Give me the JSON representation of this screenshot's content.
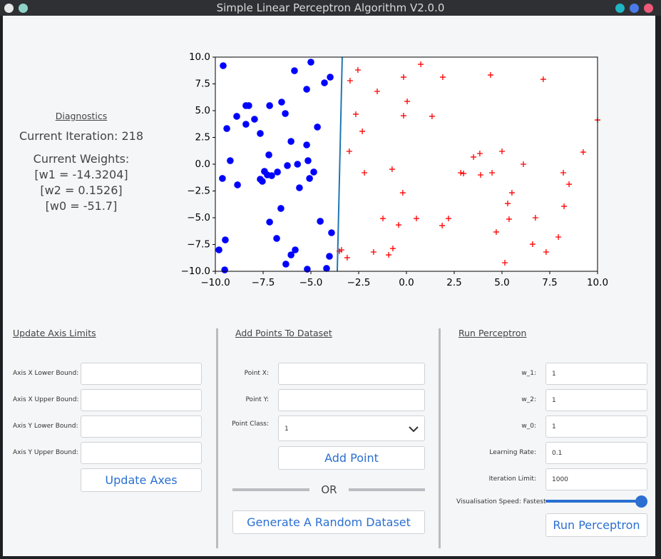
{
  "window": {
    "title": "Simple Linear Perceptron Algorithm V2.0.0"
  },
  "diagnostics": {
    "heading": "Diagnostics",
    "iteration": "Current Iteration: 218",
    "weights_heading": "Current Weights:",
    "weights": [
      "[w1 = -14.3204]",
      "[w2 = 0.1526]",
      "[w0 = -51.7]"
    ]
  },
  "chart_data": {
    "type": "scatter",
    "xlim": [
      -10,
      10
    ],
    "ylim": [
      -10,
      10
    ],
    "xticks": [
      {
        "value": -10,
        "label": "−10.0"
      },
      {
        "value": -7.5,
        "label": "−7.5"
      },
      {
        "value": -5,
        "label": "−5.0"
      },
      {
        "value": -2.5,
        "label": "−2.5"
      },
      {
        "value": 0,
        "label": "0.0"
      },
      {
        "value": 2.5,
        "label": "2.5"
      },
      {
        "value": 5,
        "label": "5.0"
      },
      {
        "value": 7.5,
        "label": "7.5"
      },
      {
        "value": 10,
        "label": "10.0"
      }
    ],
    "yticks": [
      {
        "value": 10,
        "label": "10.0"
      },
      {
        "value": 7.5,
        "label": "7.5"
      },
      {
        "value": 5,
        "label": "5.0"
      },
      {
        "value": 2.5,
        "label": "2.5"
      },
      {
        "value": 0,
        "label": "0.0"
      },
      {
        "value": -2.5,
        "label": "−2.5"
      },
      {
        "value": -5,
        "label": "−5.0"
      },
      {
        "value": -7.5,
        "label": "−7.5"
      },
      {
        "value": -10,
        "label": "−10.0"
      }
    ],
    "series": [
      {
        "type": "scatter",
        "marker": "circle",
        "color": "#0000ff",
        "x": [
          -9.59,
          -5.86,
          -5.0,
          -3.99,
          -4.29,
          -5.22,
          -8.4,
          -8.25,
          -7.16,
          -6.53,
          -6.34,
          -8.88,
          -7.95,
          -8.4,
          -9.4,
          -4.66,
          -7.65,
          -6.04,
          -5.22,
          -7.2,
          -9.22,
          -5.15,
          -6.23,
          -5.7,
          -7.43,
          -6.75,
          -7.28,
          -7.05,
          -7.65,
          -7.54,
          -4.85,
          -5.07,
          -9.63,
          -8.84,
          -5.6,
          -6.57,
          -7.16,
          -4.51,
          -3.92,
          -6.79,
          -9.48,
          -9.81,
          -5.82,
          -6.04,
          -4.03,
          -6.31,
          -9.51,
          -5.19,
          -4.18
        ],
        "y": [
          9.2,
          8.73,
          9.53,
          8.13,
          7.6,
          7.0,
          5.47,
          5.47,
          5.47,
          5.8,
          4.73,
          4.47,
          4.2,
          3.73,
          3.33,
          3.47,
          2.87,
          2.13,
          1.8,
          0.87,
          0.33,
          0.33,
          -0.13,
          0,
          -0.67,
          -0.73,
          -1.0,
          -1.07,
          -1.4,
          -1.6,
          -0.73,
          -1.33,
          -1.33,
          -1.93,
          -2.2,
          -4.13,
          -5.4,
          -5.33,
          -6.4,
          -6.93,
          -7.07,
          -8.0,
          -8.0,
          -8.47,
          -8.6,
          -9.33,
          -9.87,
          -9.8,
          -9.73
        ]
      },
      {
        "type": "scatter",
        "marker": "plus",
        "color": "#ff0000",
        "x": [
          0.75,
          -2.54,
          -2.95,
          -0.15,
          1.9,
          4.4,
          7.16,
          -1.53,
          0.04,
          -2.65,
          -0.15,
          1.34,
          -2.31,
          10.0,
          -2.99,
          5.0,
          9.25,
          3.84,
          3.51,
          6.12,
          -0.75,
          -2.2,
          2.84,
          2.99,
          3.88,
          4.48,
          8.21,
          8.51,
          -0.19,
          5.52,
          5.3,
          8.25,
          -1.23,
          0.52,
          2.2,
          5.37,
          6.75,
          -0.41,
          1.87,
          4.7,
          7.95,
          6.6,
          7.31,
          5.15,
          -0.71,
          -0.93,
          -1.72,
          -3.4,
          -3.51,
          -3.1
        ],
        "y": [
          9.33,
          8.8,
          7.8,
          8.13,
          8.13,
          8.33,
          7.93,
          6.8,
          5.87,
          4.67,
          4.53,
          4.47,
          3.07,
          4.13,
          1.2,
          1.2,
          1.13,
          1.0,
          0.67,
          0,
          -0.47,
          -0.8,
          -0.8,
          -0.87,
          -1.0,
          -0.8,
          -0.8,
          -1.87,
          -2.67,
          -2.67,
          -3.67,
          -3.93,
          -5.07,
          -5.07,
          -5.07,
          -5.13,
          -5.0,
          -5.67,
          -5.73,
          -6.33,
          -6.8,
          -7.47,
          -8.2,
          -9.2,
          -7.87,
          -8.47,
          -8.2,
          -8.0,
          -8.13,
          -8.73
        ]
      },
      {
        "type": "line",
        "color": "#1f77b4",
        "x": [
          -3.36,
          -3.62
        ],
        "y": [
          10,
          -10
        ]
      }
    ]
  },
  "axis_panel": {
    "heading": "Update Axis Limits",
    "fields": [
      "Axis X Lower Bound:",
      "Axis X Upper Bound:",
      "Axis Y Lower Bound:",
      "Axis Y Upper Bound:"
    ],
    "button": "Update Axes"
  },
  "points_panel": {
    "heading": "Add Points To Dataset",
    "fields": [
      "Point X:",
      "Point Y:"
    ],
    "class_label": "Point Class:",
    "class_value": "1",
    "button": "Add Point",
    "separator": "OR",
    "random_button": "Generate A Random Dataset"
  },
  "perceptron_panel": {
    "heading": "Run Perceptron",
    "fields": [
      {
        "label": "w_1:",
        "value": "1"
      },
      {
        "label": "w_2:",
        "value": "1"
      },
      {
        "label": "w_0:",
        "value": "1"
      },
      {
        "label": "Learning Rate:",
        "value": "0.1"
      },
      {
        "label": "Iteration Limit:",
        "value": "1000"
      }
    ],
    "speed_label": "Visualisation Speed: Fastest",
    "button": "Run Perceptron"
  }
}
